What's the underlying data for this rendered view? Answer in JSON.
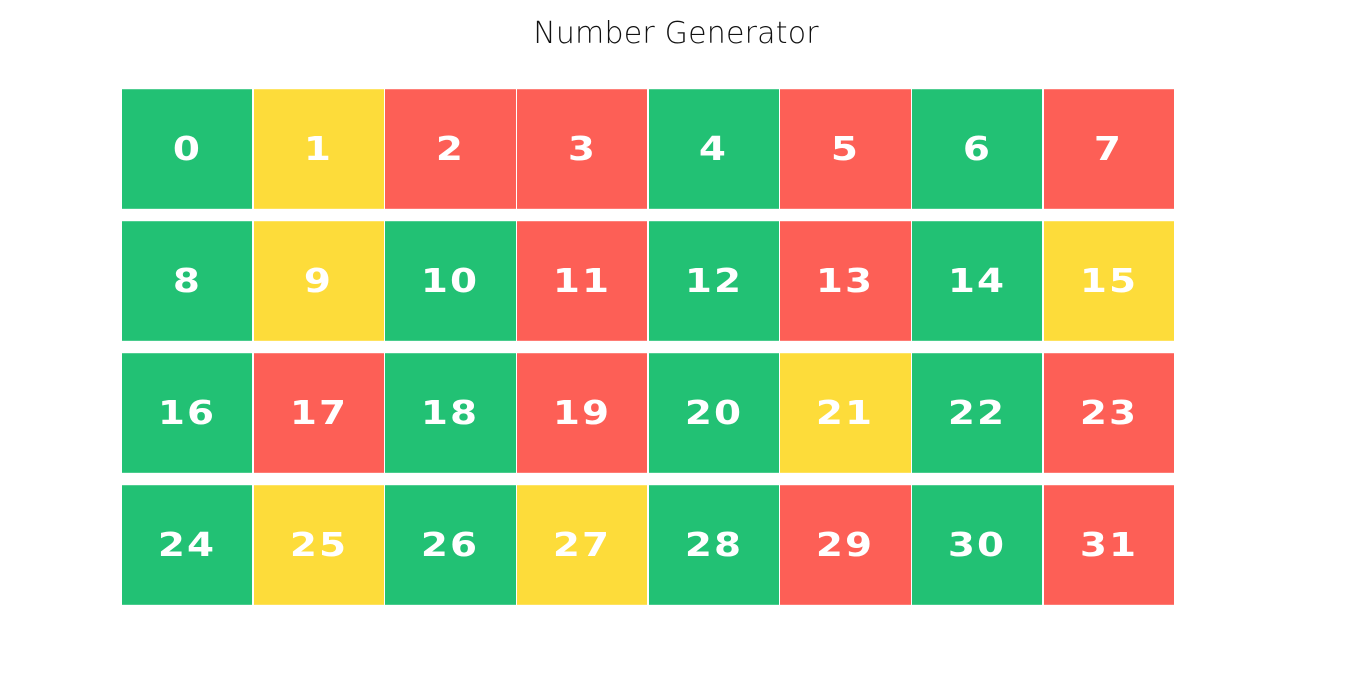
{
  "page": {
    "title": "Number Generator"
  },
  "colors": {
    "green": "#22c174",
    "yellow": "#fddc3a",
    "red": "#fd5f56"
  },
  "cells": [
    {
      "number": "0",
      "color": "green"
    },
    {
      "number": "1",
      "color": "yellow"
    },
    {
      "number": "2",
      "color": "red"
    },
    {
      "number": "3",
      "color": "red"
    },
    {
      "number": "4",
      "color": "green"
    },
    {
      "number": "5",
      "color": "red"
    },
    {
      "number": "6",
      "color": "green"
    },
    {
      "number": "7",
      "color": "red"
    },
    {
      "number": "8",
      "color": "green"
    },
    {
      "number": "9",
      "color": "yellow"
    },
    {
      "number": "10",
      "color": "green"
    },
    {
      "number": "11",
      "color": "red"
    },
    {
      "number": "12",
      "color": "green"
    },
    {
      "number": "13",
      "color": "red"
    },
    {
      "number": "14",
      "color": "green"
    },
    {
      "number": "15",
      "color": "yellow"
    },
    {
      "number": "16",
      "color": "green"
    },
    {
      "number": "17",
      "color": "red"
    },
    {
      "number": "18",
      "color": "green"
    },
    {
      "number": "19",
      "color": "red"
    },
    {
      "number": "20",
      "color": "green"
    },
    {
      "number": "21",
      "color": "yellow"
    },
    {
      "number": "22",
      "color": "green"
    },
    {
      "number": "23",
      "color": "red"
    },
    {
      "number": "24",
      "color": "green"
    },
    {
      "number": "25",
      "color": "yellow"
    },
    {
      "number": "26",
      "color": "green"
    },
    {
      "number": "27",
      "color": "yellow"
    },
    {
      "number": "28",
      "color": "green"
    },
    {
      "number": "29",
      "color": "red"
    },
    {
      "number": "30",
      "color": "green"
    },
    {
      "number": "31",
      "color": "red"
    }
  ]
}
